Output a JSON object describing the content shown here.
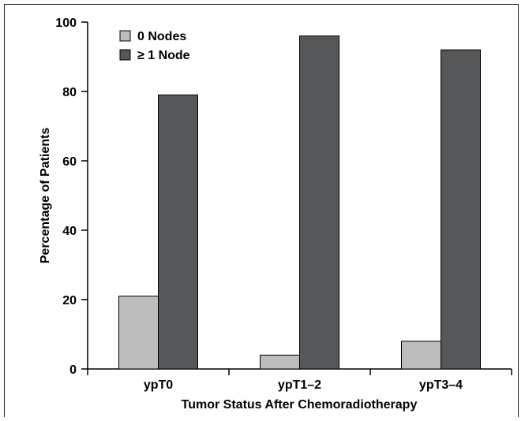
{
  "chart_data": {
    "type": "bar",
    "categories": [
      "ypT0",
      "ypT1–2",
      "ypT3–4"
    ],
    "series": [
      {
        "name": "0 Nodes",
        "values": [
          21,
          4,
          8
        ],
        "color": "#bdbdbd"
      },
      {
        "name": "≥ 1 Node",
        "values": [
          79,
          96,
          92
        ],
        "color": "#555759"
      }
    ],
    "xlabel": "Tumor Status After Chemoradiotherapy",
    "ylabel": "Percentage of Patients",
    "ylim": [
      0,
      100
    ],
    "yticks": [
      "0",
      "20",
      "40",
      "60",
      "80",
      "100"
    ],
    "grid": false,
    "legend": "top-left"
  }
}
